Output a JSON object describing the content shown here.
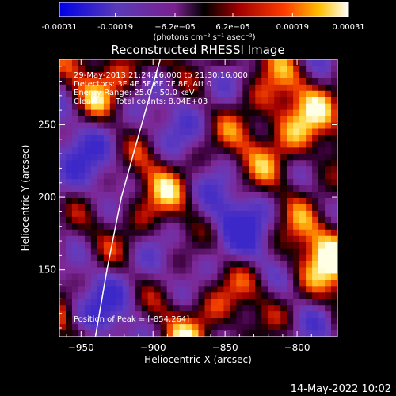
{
  "chart_data": {
    "type": "heatmap",
    "title": "Reconstructed RHESSI Image",
    "xlabel": "Heliocentric X (arcsec)",
    "ylabel": "Heliocentric Y (arcsec)",
    "xlim": [
      -965,
      -772
    ],
    "ylim": [
      104,
      295
    ],
    "x_ticks": [
      -950,
      -900,
      -850,
      -800
    ],
    "y_ticks": [
      150,
      200,
      250
    ],
    "colorbar": {
      "range": [
        -0.00031,
        0.00031
      ],
      "tick_values": [
        -0.00031,
        -0.00019,
        -6.2e-05,
        6.2e-05,
        0.00019,
        0.00031
      ],
      "tick_labels": [
        "-0.00031",
        "-0.00019",
        "−6.2e−05",
        "6.2e−05",
        "0.00019",
        "0.00031"
      ],
      "unit_label": "(photons cm⁻² s⁻¹ asec⁻²)",
      "colors": [
        "#0000e6",
        "#6a3ab4",
        "#8a2a9a",
        "#000000",
        "#b00000",
        "#ff4000",
        "#ffc000",
        "#ffffff"
      ]
    },
    "annotations": [
      "29-May-2013 21:24:16.000 to 21:30:16.000",
      "Detectors: 3F 4F 5F 6F 7F 8F, Att 0",
      "Energy Range: 25.0 - 50.0 keV",
      "Clean",
      "Total counts: 8.04E+03"
    ],
    "peak_label": "Position of Peak = [-854,264]",
    "peak": [
      -854,
      264
    ],
    "limb_curve": [
      [
        -940,
        104
      ],
      [
        -932,
        150
      ],
      [
        -922,
        200
      ],
      [
        -908,
        250
      ],
      [
        -895,
        295
      ]
    ]
  },
  "timestamp": "14-May-2022 10:02"
}
